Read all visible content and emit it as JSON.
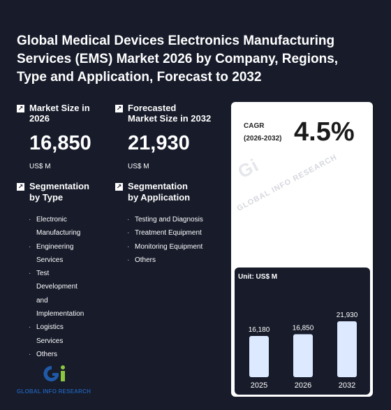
{
  "title": "Global Medical Devices Electronics Manufacturing Services (EMS) Market 2026 by Company, Regions, Type and Application, Forecast to 2032",
  "market_size": {
    "label": "Market Size in 2026",
    "value": "16,850",
    "unit": "US$ M"
  },
  "forecast": {
    "label_line1": "Forecasted",
    "label_line2": "Market Size in 2032",
    "value": "21,930",
    "unit": "US$ M"
  },
  "seg_type": {
    "label_line1": "Segmentation",
    "label_line2": "by Type",
    "items": [
      "Electronic",
      "Manufacturing",
      "Engineering",
      "Services",
      "Test",
      "Development",
      "and",
      "Implementation",
      "Logistics",
      "Services",
      "Others"
    ]
  },
  "seg_app": {
    "label_line1": "Segmentation",
    "label_line2": "by Application",
    "items": [
      "Testing and Diagnosis",
      "Treatment Equipment",
      "Monitoring Equipment",
      "Others"
    ]
  },
  "cagr": {
    "label_line1": "CAGR",
    "label_line2": "(2026-2032)",
    "value": "4.5%"
  },
  "logo": {
    "text": "GLOBAL INFO RESEARCH"
  },
  "watermark": "GLOBAL INFO RESEARCH",
  "chart_data": {
    "type": "bar",
    "title": "Unit: US$ M",
    "categories": [
      "2025",
      "2026",
      "2032"
    ],
    "values": [
      16180,
      16850,
      21930
    ],
    "value_labels": [
      "16,180",
      "16,850",
      "21,930"
    ],
    "bar_color": "#dce9ff"
  }
}
